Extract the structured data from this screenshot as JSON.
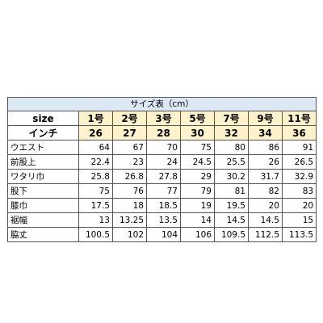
{
  "caption": "サイズ表（cm）",
  "size_row": {
    "label": "size",
    "values": [
      "1号",
      "2号",
      "3号",
      "5号",
      "7号",
      "9号",
      "11号"
    ]
  },
  "inch_row": {
    "label": "インチ",
    "values": [
      "26",
      "27",
      "28",
      "30",
      "32",
      "34",
      "36"
    ]
  },
  "rows": [
    {
      "label": "ウエスト",
      "values": [
        "64",
        "67",
        "70",
        "75",
        "80",
        "86",
        "91"
      ]
    },
    {
      "label": "前股上",
      "values": [
        "22.4",
        "23",
        "24",
        "24.5",
        "25.5",
        "26",
        "26.5"
      ]
    },
    {
      "label": "ワタリ巾",
      "values": [
        "25.8",
        "26.8",
        "27.8",
        "29",
        "30.2",
        "31.7",
        "32.9"
      ]
    },
    {
      "label": "股下",
      "values": [
        "75",
        "76",
        "77",
        "79",
        "81",
        "82",
        "83"
      ]
    },
    {
      "label": "膝巾",
      "values": [
        "17.5",
        "18",
        "18.5",
        "19",
        "19.5",
        "20",
        "20"
      ]
    },
    {
      "label": "裾幅",
      "values": [
        "13",
        "13.25",
        "13.5",
        "14",
        "14.5",
        "14.5",
        "15"
      ]
    },
    {
      "label": "脇丈",
      "values": [
        "100.5",
        "102",
        "104",
        "106",
        "109.5",
        "112.5",
        "113.5"
      ]
    }
  ],
  "colors": {
    "caption_bg": "#dde8f5",
    "size_header_bg": "#fff2cc",
    "border": "#555555"
  }
}
